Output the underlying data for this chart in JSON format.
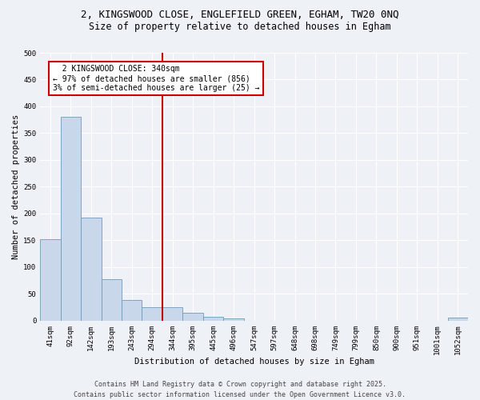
{
  "title_line1": "2, KINGSWOOD CLOSE, ENGLEFIELD GREEN, EGHAM, TW20 0NQ",
  "title_line2": "Size of property relative to detached houses in Egham",
  "xlabel": "Distribution of detached houses by size in Egham",
  "ylabel": "Number of detached properties",
  "footer_line1": "Contains HM Land Registry data © Crown copyright and database right 2025.",
  "footer_line2": "Contains public sector information licensed under the Open Government Licence v3.0.",
  "annotation_line1": "  2 KINGSWOOD CLOSE: 340sqm  ",
  "annotation_line2": "← 97% of detached houses are smaller (856)",
  "annotation_line3": "3% of semi-detached houses are larger (25) →",
  "bar_color": "#c8d8ea",
  "bar_edge_color": "#7099bb",
  "vline_color": "#cc0000",
  "annotation_box_color": "#cc0000",
  "annotation_box_fill": "#ffffff",
  "categories": [
    "41sqm",
    "92sqm",
    "142sqm",
    "193sqm",
    "243sqm",
    "294sqm",
    "344sqm",
    "395sqm",
    "445sqm",
    "496sqm",
    "547sqm",
    "597sqm",
    "648sqm",
    "698sqm",
    "749sqm",
    "799sqm",
    "850sqm",
    "900sqm",
    "951sqm",
    "1001sqm",
    "1052sqm"
  ],
  "values": [
    152,
    381,
    192,
    77,
    38,
    25,
    25,
    15,
    7,
    4,
    0,
    0,
    0,
    0,
    0,
    0,
    0,
    0,
    0,
    0,
    5
  ],
  "ylim": [
    0,
    500
  ],
  "yticks": [
    0,
    50,
    100,
    150,
    200,
    250,
    300,
    350,
    400,
    450,
    500
  ],
  "background_color": "#eef2f7",
  "grid_color": "#ffffff",
  "title_fontsize": 9,
  "subtitle_fontsize": 8.5,
  "axis_label_fontsize": 7.5,
  "tick_fontsize": 6.5,
  "footer_fontsize": 6,
  "annotation_fontsize": 7,
  "vline_index": 6
}
